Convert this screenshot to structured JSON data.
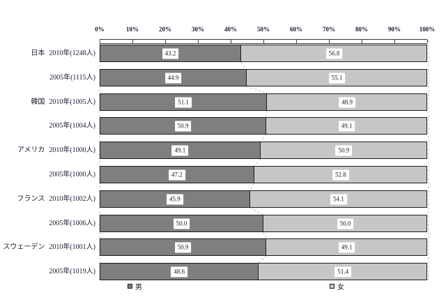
{
  "chart_data": {
    "type": "bar",
    "orientation": "horizontal",
    "stacked": true,
    "title": "",
    "x_axis": {
      "position": "top",
      "range": [
        0,
        100
      ],
      "ticks": [
        "0%",
        "10%",
        "20%",
        "30%",
        "40%",
        "50%",
        "60%",
        "70%",
        "80%",
        "90%",
        "100%"
      ]
    },
    "series_names": [
      "男",
      "女"
    ],
    "rows": [
      {
        "country": "日本",
        "label": "2010年(1248人)",
        "male": 43.2,
        "female": 56.8
      },
      {
        "country": "",
        "label": "2005年(1115人)",
        "male": 44.9,
        "female": 55.1
      },
      {
        "country": "韓国",
        "label": "2010年(1005人)",
        "male": 51.1,
        "female": 48.9
      },
      {
        "country": "",
        "label": "2005年(1004人)",
        "male": 50.9,
        "female": 49.1
      },
      {
        "country": "アメリカ",
        "label": "2010年(1000人)",
        "male": 49.1,
        "female": 50.9
      },
      {
        "country": "",
        "label": "2005年(1000人)",
        "male": 47.2,
        "female": 52.8
      },
      {
        "country": "フランス",
        "label": "2010年(1002人)",
        "male": 45.9,
        "female": 54.1
      },
      {
        "country": "",
        "label": "2005年(1006人)",
        "male": 50.0,
        "female": 50.0
      },
      {
        "country": "スウェーデン",
        "label": "2010年(1001人)",
        "male": 50.9,
        "female": 49.1
      },
      {
        "country": "",
        "label": "2005年(1019人)",
        "male": 48.6,
        "female": 51.4
      }
    ],
    "legend": {
      "male": "男",
      "female": "女",
      "position": "bottom"
    },
    "grid": false,
    "value_label_decimals": 1
  },
  "colors": {
    "male_fill": "#7f7f7f",
    "female_fill": "#c6c6c6",
    "bar_border": "#1c1c1c",
    "dashed_line": "#bcbcbc",
    "text": "#1a1a2e",
    "background": "#ffffff"
  }
}
